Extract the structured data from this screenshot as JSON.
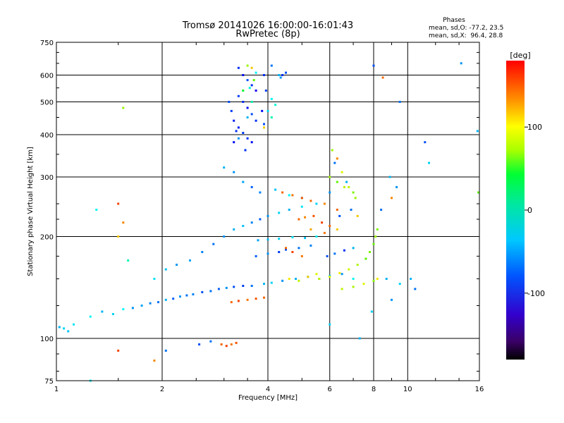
{
  "chart_data": {
    "type": "scatter",
    "title": "Tromsø 20141026 16:00:00-16:01:43",
    "subtitle": "RwPretec (8p)",
    "xlabel": "Frequency [MHz]",
    "ylabel": "Stationary phase Virtual Height [km]",
    "x_scale": "log",
    "y_scale": "log",
    "xlim": [
      1,
      16
    ],
    "ylim": [
      75,
      750
    ],
    "x_ticks": [
      1,
      2,
      4,
      6,
      8,
      10,
      16
    ],
    "y_ticks": [
      75,
      100,
      200,
      300,
      400,
      500,
      600,
      750
    ],
    "grid": true,
    "stats": {
      "heading": "Phases",
      "line1": "mean, sd,O: -77.2, 23.5",
      "line2": "mean, sd,X:  96.4, 28.8"
    },
    "colorbar": {
      "label": "[deg]",
      "range": [
        -180,
        180
      ],
      "ticks": [
        100,
        0,
        -100
      ],
      "colormap": "rainbow"
    },
    "series": [
      {
        "points": [
          [
            1.02,
            108,
            -60
          ],
          [
            1.05,
            107,
            -50
          ],
          [
            1.08,
            105,
            -55
          ],
          [
            1.12,
            110,
            -45
          ],
          [
            1.25,
            116,
            -40
          ],
          [
            1.35,
            120,
            -60
          ],
          [
            1.45,
            118,
            -50
          ],
          [
            1.55,
            122,
            -40
          ],
          [
            1.65,
            123,
            -70
          ],
          [
            1.75,
            125,
            -65
          ],
          [
            1.85,
            127,
            -75
          ],
          [
            1.95,
            128,
            -80
          ],
          [
            2.05,
            130,
            -60
          ],
          [
            2.15,
            131,
            -85
          ],
          [
            2.25,
            133,
            -70
          ],
          [
            2.35,
            134,
            -80
          ],
          [
            2.45,
            135,
            -75
          ],
          [
            2.6,
            137,
            -90
          ],
          [
            2.75,
            138,
            -80
          ],
          [
            2.9,
            140,
            -85
          ],
          [
            3.05,
            141,
            -70
          ],
          [
            3.2,
            142,
            -90
          ],
          [
            3.4,
            143,
            -95
          ],
          [
            3.6,
            143,
            -80
          ],
          [
            3.9,
            145,
            -60
          ],
          [
            4.1,
            146,
            -50
          ],
          [
            4.4,
            148,
            -70
          ],
          [
            4.8,
            150,
            -60
          ],
          [
            5.2,
            152,
            -50
          ],
          [
            5.6,
            150,
            -65
          ],
          [
            6.0,
            153,
            -55
          ],
          [
            6.5,
            155,
            -70
          ],
          [
            7.0,
            150,
            -40
          ],
          [
            1.9,
            150,
            -45
          ],
          [
            2.05,
            160,
            -55
          ],
          [
            2.2,
            165,
            -70
          ],
          [
            2.4,
            170,
            -65
          ],
          [
            2.6,
            180,
            -75
          ],
          [
            2.8,
            190,
            -80
          ],
          [
            3.0,
            200,
            -70
          ],
          [
            3.2,
            210,
            -60
          ],
          [
            3.4,
            215,
            -55
          ],
          [
            3.6,
            220,
            -75
          ],
          [
            3.8,
            225,
            -85
          ],
          [
            4.0,
            230,
            -70
          ],
          [
            4.3,
            235,
            -50
          ],
          [
            4.6,
            240,
            -60
          ],
          [
            5.0,
            245,
            -45
          ],
          [
            5.5,
            250,
            -50
          ],
          [
            3.0,
            320,
            -60
          ],
          [
            3.2,
            310,
            -70
          ],
          [
            3.4,
            290,
            -65
          ],
          [
            3.6,
            280,
            -85
          ],
          [
            3.8,
            270,
            -75
          ],
          [
            4.2,
            275,
            -55
          ],
          [
            4.6,
            265,
            -40
          ],
          [
            5.0,
            260,
            -30
          ],
          [
            3.75,
            195,
            -65
          ],
          [
            4.0,
            196,
            -60
          ],
          [
            4.3,
            197,
            -50
          ],
          [
            4.7,
            199,
            -45
          ],
          [
            5.1,
            198,
            -55
          ],
          [
            5.5,
            200,
            -40
          ],
          [
            4.5,
            183,
            -90
          ],
          [
            4.9,
            185,
            -80
          ],
          [
            5.3,
            188,
            -75
          ],
          [
            3.7,
            175,
            -85
          ],
          [
            4.0,
            178,
            -70
          ],
          [
            4.3,
            180,
            -95
          ],
          [
            3.15,
            128,
            150
          ],
          [
            3.3,
            129,
            160
          ],
          [
            3.5,
            130,
            145
          ],
          [
            3.7,
            131,
            155
          ],
          [
            3.9,
            132,
            150
          ],
          [
            2.95,
            96,
            150
          ],
          [
            3.05,
            95,
            160
          ],
          [
            3.15,
            96,
            145
          ],
          [
            3.25,
            97,
            155
          ],
          [
            2.75,
            98,
            -80
          ],
          [
            4.9,
            225,
            150
          ],
          [
            5.1,
            228,
            140
          ],
          [
            5.4,
            230,
            155
          ],
          [
            5.7,
            220,
            160
          ],
          [
            6.0,
            215,
            150
          ],
          [
            5.3,
            210,
            130
          ],
          [
            5.8,
            205,
            145
          ],
          [
            6.3,
            210,
            120
          ],
          [
            4.5,
            185,
            150
          ],
          [
            4.7,
            180,
            160
          ],
          [
            5.0,
            175,
            145
          ],
          [
            4.4,
            270,
            150
          ],
          [
            4.7,
            265,
            145
          ],
          [
            5.0,
            260,
            155
          ],
          [
            5.3,
            255,
            150
          ],
          [
            5.8,
            250,
            140
          ],
          [
            6.3,
            240,
            150
          ],
          [
            6.0,
            300,
            80
          ],
          [
            6.3,
            290,
            60
          ],
          [
            6.6,
            280,
            90
          ],
          [
            7.0,
            270,
            70
          ],
          [
            5.6,
            150,
            90
          ],
          [
            6.0,
            152,
            100
          ],
          [
            6.4,
            156,
            110
          ],
          [
            6.8,
            160,
            95
          ],
          [
            7.2,
            165,
            85
          ],
          [
            7.6,
            172,
            60
          ],
          [
            7.8,
            180,
            70
          ],
          [
            8.0,
            190,
            65
          ],
          [
            8.1,
            200,
            80
          ],
          [
            8.2,
            210,
            70
          ],
          [
            6.5,
            140,
            90
          ],
          [
            7.0,
            142,
            85
          ],
          [
            7.5,
            145,
            100
          ],
          [
            8.0,
            148,
            75
          ],
          [
            4.6,
            150,
            110
          ],
          [
            4.9,
            148,
            90
          ],
          [
            5.2,
            152,
            120
          ],
          [
            5.5,
            155,
            100
          ],
          [
            3.3,
            630,
            -100
          ],
          [
            3.4,
            600,
            -110
          ],
          [
            3.5,
            580,
            -90
          ],
          [
            3.6,
            560,
            -100
          ],
          [
            3.7,
            540,
            -120
          ],
          [
            3.3,
            520,
            -95
          ],
          [
            3.4,
            500,
            -100
          ],
          [
            3.5,
            480,
            -110
          ],
          [
            3.6,
            460,
            -90
          ],
          [
            3.7,
            440,
            -100
          ],
          [
            3.3,
            420,
            -105
          ],
          [
            3.4,
            405,
            -95
          ],
          [
            3.5,
            390,
            -100
          ],
          [
            3.6,
            380,
            -110
          ],
          [
            3.45,
            360,
            -100
          ],
          [
            3.15,
            470,
            -95
          ],
          [
            3.2,
            440,
            -105
          ],
          [
            3.1,
            500,
            -90
          ],
          [
            3.25,
            410,
            -100
          ],
          [
            3.2,
            380,
            -110
          ],
          [
            3.5,
            640,
            80
          ],
          [
            3.6,
            630,
            120
          ],
          [
            3.65,
            580,
            60
          ],
          [
            3.55,
            550,
            -30
          ],
          [
            3.7,
            610,
            -40
          ],
          [
            3.4,
            540,
            20
          ],
          [
            3.6,
            500,
            -20
          ],
          [
            3.5,
            450,
            -60
          ],
          [
            3.3,
            390,
            -70
          ],
          [
            3.9,
            600,
            -100
          ],
          [
            3.95,
            540,
            -95
          ],
          [
            3.85,
            470,
            -110
          ],
          [
            3.9,
            430,
            -90
          ],
          [
            4.1,
            640,
            -80
          ],
          [
            4.3,
            600,
            -60
          ],
          [
            4.1,
            510,
            -40
          ],
          [
            4.2,
            490,
            -30
          ],
          [
            4.0,
            470,
            -50
          ],
          [
            3.9,
            420,
            120
          ],
          [
            4.1,
            450,
            -20
          ],
          [
            4.4,
            600,
            -100
          ],
          [
            4.5,
            610,
            -90
          ],
          [
            4.35,
            590,
            -70
          ],
          [
            6.1,
            360,
            80
          ],
          [
            6.3,
            340,
            140
          ],
          [
            6.5,
            310,
            100
          ],
          [
            6.7,
            290,
            -60
          ],
          [
            6.2,
            330,
            -80
          ],
          [
            6.0,
            270,
            -70
          ],
          [
            6.8,
            280,
            90
          ],
          [
            7.1,
            260,
            80
          ],
          [
            6.4,
            230,
            -90
          ],
          [
            6.9,
            240,
            -80
          ],
          [
            7.2,
            230,
            120
          ],
          [
            5.9,
            175,
            -90
          ],
          [
            6.2,
            178,
            -80
          ],
          [
            6.6,
            182,
            -100
          ],
          [
            7.0,
            185,
            -60
          ],
          [
            8.5,
            590,
            150
          ],
          [
            8.0,
            640,
            -90
          ],
          [
            8.9,
            300,
            -60
          ],
          [
            9.3,
            280,
            -70
          ],
          [
            8.4,
            240,
            -80
          ],
          [
            9.0,
            260,
            140
          ],
          [
            8.7,
            150,
            -60
          ],
          [
            8.2,
            150,
            110
          ],
          [
            9.0,
            130,
            -70
          ],
          [
            9.5,
            145,
            -50
          ],
          [
            10.5,
            140,
            -80
          ],
          [
            10.2,
            150,
            -60
          ],
          [
            9.5,
            500,
            -80
          ],
          [
            11.2,
            380,
            -90
          ],
          [
            11.5,
            330,
            -50
          ],
          [
            14.2,
            650,
            -70
          ],
          [
            15.8,
            410,
            -60
          ],
          [
            15.9,
            270,
            60
          ],
          [
            1.3,
            240,
            -40
          ],
          [
            1.5,
            250,
            160
          ],
          [
            1.55,
            220,
            140
          ],
          [
            1.5,
            200,
            120
          ],
          [
            1.6,
            170,
            -20
          ],
          [
            1.5,
            92,
            160
          ],
          [
            1.25,
            75,
            -40
          ],
          [
            1.9,
            86,
            140
          ],
          [
            2.05,
            92,
            -80
          ],
          [
            2.55,
            96,
            -90
          ],
          [
            1.55,
            480,
            80
          ],
          [
            6.0,
            110,
            -50
          ],
          [
            7.3,
            100,
            -60
          ],
          [
            7.9,
            120,
            -50
          ]
        ]
      }
    ]
  }
}
